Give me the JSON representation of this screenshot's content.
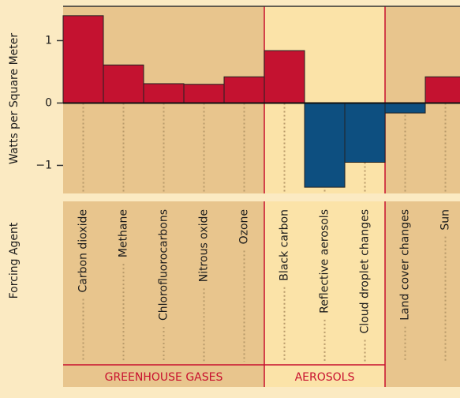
{
  "chart_data": {
    "type": "bar",
    "y_label": "Watts per Square Meter",
    "x_label": "Forcing Agent",
    "ylim": [
      -1.45,
      1.55
    ],
    "yticks": [
      1,
      0,
      {
        "value": -1,
        "label": "−1"
      }
    ],
    "color_positive": "#c41230",
    "color_negative": "#0d4f80",
    "groups": [
      {
        "name": "GREENHOUSE GASES",
        "background": "#e8c58d",
        "categories": [
          "Carbon dioxide",
          "Methane",
          "Chlorofluorocarbons",
          "Nitrous oxide",
          "Ozone"
        ],
        "values": [
          1.4,
          0.61,
          0.31,
          0.3,
          0.42
        ]
      },
      {
        "name": "AEROSOLS",
        "background": "#fbe3a8",
        "categories": [
          "Black carbon",
          "Reflective aerosols",
          "Cloud droplet changes"
        ],
        "values": [
          0.84,
          -1.35,
          -0.95
        ]
      },
      {
        "name": null,
        "background": "#e8c58d",
        "categories": [
          "Land cover changes",
          "Sun"
        ],
        "values": [
          -0.16,
          0.42
        ]
      }
    ]
  }
}
